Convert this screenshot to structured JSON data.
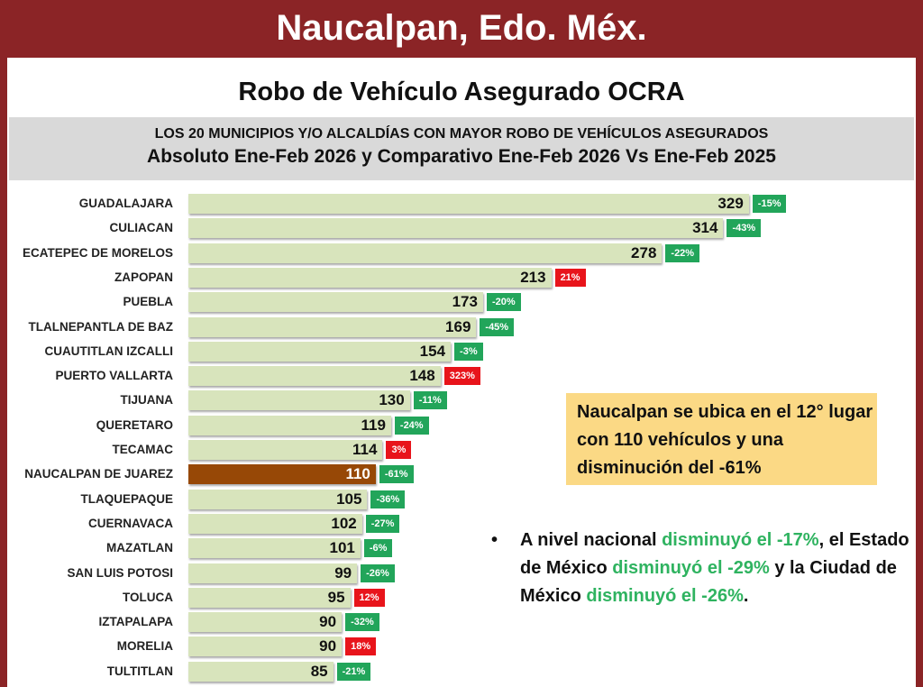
{
  "header": {
    "title": "Naucalpan, Edo. Méx."
  },
  "subtitle": "Robo de Vehículo Asegurado OCRA",
  "chart_data": {
    "type": "bar",
    "title": "LOS 20 MUNICIPIOS Y/O ALCALDÍAS CON MAYOR ROBO DE VEHÍCULOS ASEGURADOS",
    "subtitle": "Absoluto Ene-Feb 2026 y Comparativo Ene-Feb 2026 Vs Ene-Feb 2025",
    "orientation": "horizontal",
    "categories": [
      "GUADALAJARA",
      "CULIACAN",
      "ECATEPEC DE MORELOS",
      "ZAPOPAN",
      "PUEBLA",
      "TLALNEPANTLA DE BAZ",
      "CUAUTITLAN IZCALLI",
      "PUERTO VALLARTA",
      "TIJUANA",
      "QUERETARO",
      "TECAMAC",
      "NAUCALPAN DE JUAREZ",
      "TLAQUEPAQUE",
      "CUERNAVACA",
      "MAZATLAN",
      "SAN LUIS POTOSI",
      "TOLUCA",
      "IZTAPALAPA",
      "MORELIA",
      "TULTITLAN"
    ],
    "values": [
      329,
      314,
      278,
      213,
      173,
      169,
      154,
      148,
      130,
      119,
      114,
      110,
      105,
      102,
      101,
      99,
      95,
      90,
      90,
      85
    ],
    "changes": [
      "-15%",
      "-43%",
      "-22%",
      "21%",
      "-20%",
      "-45%",
      "-3%",
      "323%",
      "-11%",
      "-24%",
      "3%",
      "-61%",
      "-36%",
      "-27%",
      "-6%",
      "-26%",
      "12%",
      "-32%",
      "18%",
      "-21%"
    ],
    "highlight": "NAUCALPAN DE JUAREZ",
    "colors": {
      "bar": "#d8e4bc",
      "highlight": "#974806",
      "decrease": "#22a55a",
      "increase": "#e8141b"
    }
  },
  "note": "Naucalpan se ubica en el 12° lugar con 110 vehículos y una disminución del -61%",
  "bullet": {
    "t1": "A nivel nacional ",
    "g1": "disminuyó el -17%",
    "t2": ", el Estado de México ",
    "g2": "disminuyó el -29%",
    "t3": " y la Ciudad de México ",
    "g3": "disminuyó el -26%",
    "t4": "."
  }
}
